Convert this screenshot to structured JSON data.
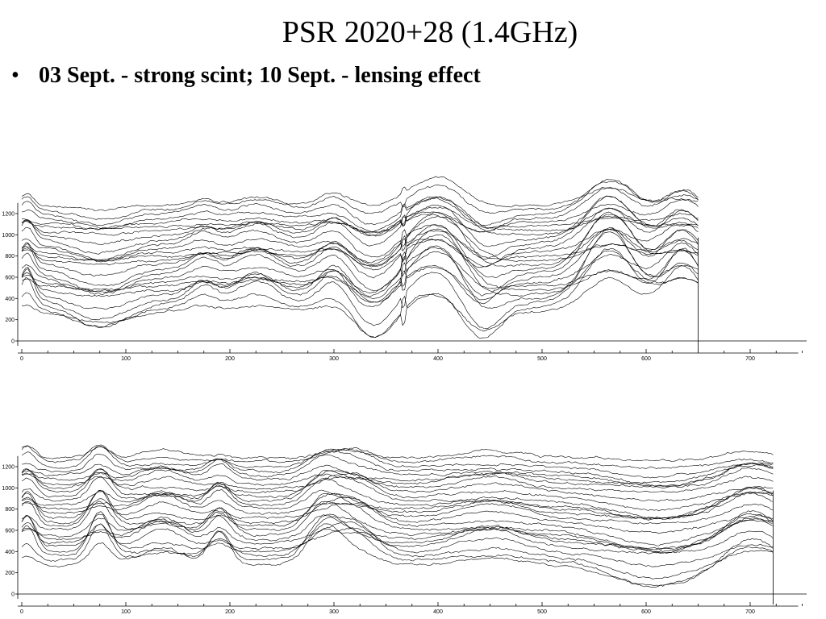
{
  "slide": {
    "title": "PSR 2020+28 (1.4GHz)",
    "bullet_symbol": "•",
    "bullet_text": "03 Sept. - strong scint; 10 Sept. - lensing effect"
  },
  "chart_data": [
    {
      "type": "line",
      "x_ticks": [
        0,
        100,
        200,
        300,
        400,
        500,
        600,
        700
      ],
      "y_ticks": [
        0,
        200,
        400,
        600,
        800,
        1000,
        1200
      ],
      "x_range": [
        0,
        750
      ],
      "y_range": [
        -50,
        1300
      ],
      "data_x_end": 650,
      "n_traces": 26,
      "trace_offset_step": 40,
      "trace_color": "#000000",
      "features": [
        {
          "x": 5,
          "width": 6,
          "amp": 250
        },
        {
          "x": 75,
          "width": 25,
          "amp": -200
        },
        {
          "x": 175,
          "width": 12,
          "amp": 150
        },
        {
          "x": 225,
          "width": 18,
          "amp": 200
        },
        {
          "x": 300,
          "width": 14,
          "amp": 250
        },
        {
          "x": 340,
          "width": 18,
          "amp": -250
        },
        {
          "x": 400,
          "width": 28,
          "amp": 550
        },
        {
          "x": 440,
          "width": 18,
          "amp": -300
        },
        {
          "x": 565,
          "width": 22,
          "amp": 600
        },
        {
          "x": 635,
          "width": 18,
          "amp": 450
        }
      ],
      "spike_x": 367
    },
    {
      "type": "line",
      "x_ticks": [
        0,
        100,
        200,
        300,
        400,
        500,
        600,
        700
      ],
      "y_ticks": [
        0,
        200,
        400,
        600,
        800,
        1000,
        1200
      ],
      "x_range": [
        0,
        750
      ],
      "y_range": [
        -50,
        1300
      ],
      "data_x_end": 722,
      "n_traces": 26,
      "trace_offset_step": 40,
      "trace_color": "#000000",
      "features": [
        {
          "x": 5,
          "width": 8,
          "amp": 300
        },
        {
          "x": 75,
          "width": 10,
          "amp": 350
        },
        {
          "x": 135,
          "width": 20,
          "amp": 200
        },
        {
          "x": 190,
          "width": 10,
          "amp": 250
        },
        {
          "x": 290,
          "width": 15,
          "amp": 300
        },
        {
          "x": 320,
          "width": 18,
          "amp": 250
        },
        {
          "x": 450,
          "width": 30,
          "amp": 150
        },
        {
          "x": 610,
          "width": 40,
          "amp": -200
        },
        {
          "x": 700,
          "width": 22,
          "amp": 250
        }
      ],
      "spike_x": null
    }
  ]
}
